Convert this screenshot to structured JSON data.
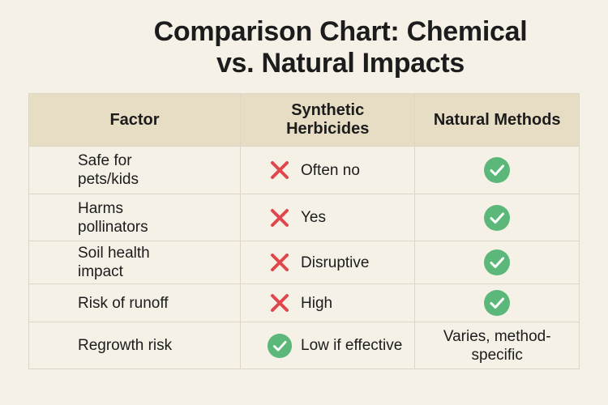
{
  "title_line1": "Comparison Chart: Chemical",
  "title_line2": "vs. Natural Impacts",
  "colors": {
    "background": "#f6f1e7",
    "header": "#e7ddc4",
    "cross": "#e0474c",
    "check": "#5cb87a"
  },
  "chart_data": {
    "type": "table",
    "columns": [
      "Factor",
      "Synthetic Herbicides",
      "Natural Methods"
    ],
    "rows": [
      {
        "factor": "Safe for pets/kids",
        "synthetic": {
          "icon": "cross-icon",
          "text": "Often no"
        },
        "natural": {
          "icon": "check-icon",
          "text": ""
        }
      },
      {
        "factor": "Harms pollinators",
        "synthetic": {
          "icon": "cross-icon",
          "text": "Yes"
        },
        "natural": {
          "icon": "check-icon",
          "text": ""
        }
      },
      {
        "factor": "Soil health impact",
        "synthetic": {
          "icon": "cross-icon",
          "text": "Disruptive"
        },
        "natural": {
          "icon": "check-icon",
          "text": ""
        }
      },
      {
        "factor": "Risk of runoff",
        "synthetic": {
          "icon": "cross-icon",
          "text": "High"
        },
        "natural": {
          "icon": "check-icon",
          "text": ""
        }
      },
      {
        "factor": "Regrowth risk",
        "synthetic": {
          "icon": "check-icon",
          "text": "Low if effective"
        },
        "natural": {
          "icon": "",
          "text": "Varies, method-specific"
        }
      }
    ]
  }
}
